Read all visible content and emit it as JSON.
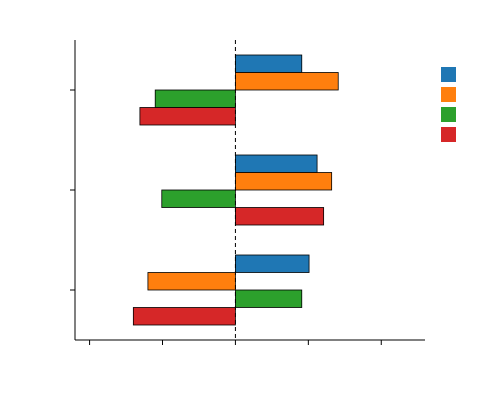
{
  "chart_data": {
    "type": "barh",
    "categories": [
      null,
      null,
      null
    ],
    "series": [
      {
        "color": "#1f77b4",
        "values": [
          0.91,
          1.12,
          1.01
        ]
      },
      {
        "color": "#ff7f0e",
        "values": [
          1.41,
          1.32,
          -1.2
        ]
      },
      {
        "color": "#2ca02c",
        "values": [
          -1.1,
          -1.01,
          0.91
        ]
      },
      {
        "color": "#d62728",
        "values": [
          -1.31,
          1.21,
          -1.4
        ]
      }
    ],
    "xlim": [
      -2.2,
      2.6
    ],
    "xticks": [
      -2,
      -1,
      0,
      1,
      2
    ],
    "zero_line": true,
    "legend": "right"
  }
}
